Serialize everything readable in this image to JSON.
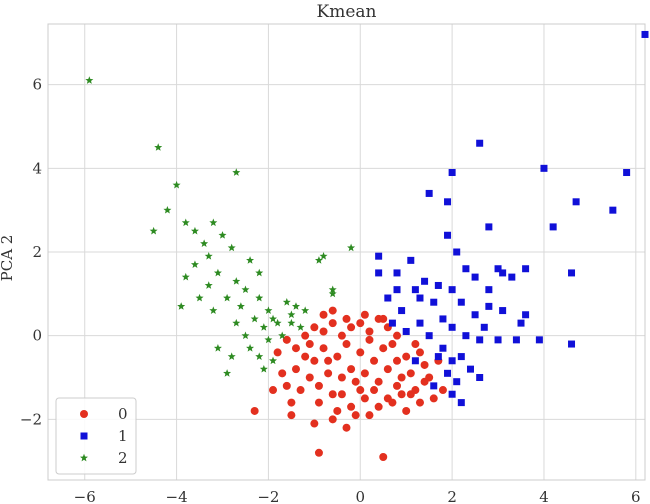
{
  "chart_data": {
    "type": "scatter",
    "title": "Kmean",
    "ylabel": "PCA 2",
    "xlabel": "",
    "xlim": [
      -6.8,
      6.2
    ],
    "ylim": [
      -3.45,
      7.45
    ],
    "xticks": [
      -6,
      -4,
      -2,
      0,
      2,
      4,
      6
    ],
    "yticks": [
      -2,
      0,
      2,
      4,
      6
    ],
    "xtick_labels": [
      "−6",
      "−4",
      "−2",
      "0",
      "2",
      "4",
      "6"
    ],
    "ytick_labels": [
      "−2",
      "0",
      "2",
      "4",
      "6"
    ],
    "grid": true,
    "legend_position": "lower-left",
    "series": [
      {
        "name": "0",
        "marker": "circle",
        "color": "#e3301f",
        "points": [
          [
            -2.3,
            -1.8
          ],
          [
            -1.5,
            -1.6
          ],
          [
            -1.0,
            -2.1
          ],
          [
            -0.9,
            -2.8
          ],
          [
            -0.6,
            -2.0
          ],
          [
            -0.3,
            -2.2
          ],
          [
            -0.2,
            -1.7
          ],
          [
            0.0,
            -1.3
          ],
          [
            0.2,
            -1.9
          ],
          [
            0.4,
            -1.7
          ],
          [
            0.5,
            -2.9
          ],
          [
            0.6,
            -1.5
          ],
          [
            0.8,
            -1.2
          ],
          [
            1.0,
            -1.8
          ],
          [
            1.1,
            -1.4
          ],
          [
            1.3,
            -1.6
          ],
          [
            1.4,
            -1.1
          ],
          [
            1.6,
            -1.5
          ],
          [
            1.8,
            -1.3
          ],
          [
            -1.9,
            -1.3
          ],
          [
            -1.7,
            -0.9
          ],
          [
            -1.6,
            -1.2
          ],
          [
            -1.4,
            -0.8
          ],
          [
            -1.3,
            -1.3
          ],
          [
            -1.2,
            -0.5
          ],
          [
            -1.1,
            -1.0
          ],
          [
            -1.0,
            -0.6
          ],
          [
            -0.9,
            -1.2
          ],
          [
            -0.8,
            -0.3
          ],
          [
            -0.7,
            -0.9
          ],
          [
            -0.6,
            -1.4
          ],
          [
            -0.5,
            -0.5
          ],
          [
            -0.4,
            -1.0
          ],
          [
            -0.3,
            -0.2
          ],
          [
            -0.2,
            -0.8
          ],
          [
            -0.1,
            -1.1
          ],
          [
            0.0,
            -0.4
          ],
          [
            0.1,
            -0.9
          ],
          [
            0.2,
            -0.1
          ],
          [
            0.3,
            -0.6
          ],
          [
            0.4,
            -1.1
          ],
          [
            0.5,
            -0.3
          ],
          [
            0.6,
            -0.8
          ],
          [
            0.7,
            -0.2
          ],
          [
            0.8,
            -0.6
          ],
          [
            0.9,
            -1.0
          ],
          [
            1.0,
            -0.5
          ],
          [
            1.1,
            -0.9
          ],
          [
            1.2,
            -0.2
          ],
          [
            1.4,
            -0.7
          ],
          [
            1.5,
            -1.0
          ],
          [
            1.7,
            -0.6
          ],
          [
            -1.8,
            -0.4
          ],
          [
            -1.6,
            -0.1
          ],
          [
            -1.4,
            -0.3
          ],
          [
            -1.2,
            0.0
          ],
          [
            -1.0,
            0.2
          ],
          [
            -0.8,
            0.1
          ],
          [
            -0.6,
            0.3
          ],
          [
            -0.4,
            0.0
          ],
          [
            -0.2,
            0.2
          ],
          [
            0.0,
            0.3
          ],
          [
            0.2,
            0.1
          ],
          [
            0.4,
            0.4
          ],
          [
            0.6,
            0.2
          ],
          [
            0.8,
            0.0
          ],
          [
            -0.8,
            0.5
          ],
          [
            -0.6,
            0.6
          ],
          [
            -0.3,
            0.4
          ],
          [
            0.1,
            0.5
          ],
          [
            0.5,
            0.4
          ],
          [
            -0.9,
            -1.6
          ],
          [
            -0.5,
            -1.8
          ],
          [
            0.1,
            -1.5
          ],
          [
            0.3,
            -1.3
          ],
          [
            0.7,
            -1.6
          ],
          [
            1.2,
            -1.3
          ],
          [
            -1.5,
            -1.9
          ],
          [
            -0.1,
            -1.9
          ],
          [
            -0.4,
            -1.4
          ],
          [
            0.9,
            -1.4
          ],
          [
            1.3,
            -0.4
          ],
          [
            -1.1,
            -0.2
          ],
          [
            -0.7,
            -0.6
          ]
        ]
      },
      {
        "name": "1",
        "marker": "square",
        "color": "#1010d8",
        "points": [
          [
            6.2,
            7.2
          ],
          [
            2.6,
            4.6
          ],
          [
            4.0,
            4.0
          ],
          [
            2.0,
            3.9
          ],
          [
            5.8,
            3.9
          ],
          [
            1.5,
            3.4
          ],
          [
            4.7,
            3.2
          ],
          [
            1.9,
            3.2
          ],
          [
            5.5,
            3.0
          ],
          [
            4.2,
            2.6
          ],
          [
            2.8,
            2.6
          ],
          [
            1.9,
            2.4
          ],
          [
            4.6,
            1.5
          ],
          [
            2.1,
            2.0
          ],
          [
            3.0,
            1.6
          ],
          [
            2.3,
            1.6
          ],
          [
            0.4,
            1.9
          ],
          [
            1.1,
            1.8
          ],
          [
            0.8,
            1.5
          ],
          [
            0.4,
            1.5
          ],
          [
            3.3,
            1.4
          ],
          [
            2.5,
            1.4
          ],
          [
            1.4,
            1.3
          ],
          [
            1.7,
            1.2
          ],
          [
            2.0,
            1.1
          ],
          [
            2.8,
            1.1
          ],
          [
            0.8,
            1.1
          ],
          [
            1.2,
            1.1
          ],
          [
            3.6,
            1.6
          ],
          [
            3.1,
            1.5
          ],
          [
            0.6,
            0.9
          ],
          [
            1.6,
            0.8
          ],
          [
            2.2,
            0.8
          ],
          [
            2.8,
            0.7
          ],
          [
            3.1,
            0.6
          ],
          [
            0.9,
            0.6
          ],
          [
            3.6,
            0.5
          ],
          [
            2.5,
            0.5
          ],
          [
            1.8,
            0.4
          ],
          [
            1.3,
            0.3
          ],
          [
            2.0,
            0.2
          ],
          [
            2.7,
            0.2
          ],
          [
            3.5,
            0.3
          ],
          [
            1.0,
            0.1
          ],
          [
            1.5,
            0.0
          ],
          [
            2.3,
            0.0
          ],
          [
            3.0,
            -0.1
          ],
          [
            3.4,
            -0.1
          ],
          [
            4.6,
            -0.2
          ],
          [
            2.6,
            -0.1
          ],
          [
            1.8,
            -0.3
          ],
          [
            2.2,
            -0.5
          ],
          [
            1.7,
            -0.5
          ],
          [
            2.0,
            -0.6
          ],
          [
            2.4,
            -0.8
          ],
          [
            1.9,
            -0.9
          ],
          [
            2.1,
            -1.1
          ],
          [
            1.6,
            -1.2
          ],
          [
            2.6,
            -1.0
          ],
          [
            2.0,
            -1.4
          ],
          [
            2.2,
            -1.6
          ],
          [
            1.2,
            -0.6
          ],
          [
            3.9,
            -0.1
          ],
          [
            0.7,
            0.3
          ],
          [
            1.3,
            0.9
          ]
        ]
      },
      {
        "name": "2",
        "marker": "star",
        "color": "#2e8b22",
        "points": [
          [
            -5.9,
            6.1
          ],
          [
            -4.4,
            4.5
          ],
          [
            -2.7,
            3.9
          ],
          [
            -4.0,
            3.6
          ],
          [
            -4.2,
            3.0
          ],
          [
            -4.5,
            2.5
          ],
          [
            -3.8,
            2.7
          ],
          [
            -3.2,
            2.7
          ],
          [
            -3.6,
            2.5
          ],
          [
            -3.0,
            2.4
          ],
          [
            -3.4,
            2.2
          ],
          [
            -2.8,
            2.1
          ],
          [
            -3.3,
            1.9
          ],
          [
            -3.6,
            1.7
          ],
          [
            -2.4,
            1.8
          ],
          [
            -3.8,
            1.4
          ],
          [
            -3.1,
            1.5
          ],
          [
            -2.7,
            1.3
          ],
          [
            -3.3,
            1.2
          ],
          [
            -2.5,
            1.1
          ],
          [
            -2.9,
            0.9
          ],
          [
            -3.5,
            0.9
          ],
          [
            -2.2,
            0.9
          ],
          [
            -2.6,
            0.7
          ],
          [
            -3.2,
            0.6
          ],
          [
            -2.0,
            0.6
          ],
          [
            -1.6,
            0.8
          ],
          [
            -1.9,
            0.4
          ],
          [
            -2.3,
            0.4
          ],
          [
            -2.7,
            0.3
          ],
          [
            -1.5,
            0.5
          ],
          [
            -1.2,
            0.6
          ],
          [
            -1.8,
            0.3
          ],
          [
            -2.1,
            0.2
          ],
          [
            -1.7,
            0.0
          ],
          [
            -1.3,
            0.2
          ],
          [
            -2.0,
            -0.1
          ],
          [
            -2.5,
            0.0
          ],
          [
            -3.1,
            -0.3
          ],
          [
            -2.4,
            -0.3
          ],
          [
            -2.8,
            -0.5
          ],
          [
            -2.2,
            -0.5
          ],
          [
            -1.9,
            -0.6
          ],
          [
            -2.1,
            -0.8
          ],
          [
            -2.9,
            -0.9
          ],
          [
            -3.9,
            0.7
          ],
          [
            -0.6,
            1.0
          ],
          [
            -0.8,
            1.9
          ],
          [
            -0.2,
            2.1
          ],
          [
            -0.9,
            1.8
          ],
          [
            -0.6,
            1.1
          ],
          [
            -1.5,
            0.3
          ],
          [
            -2.2,
            1.5
          ],
          [
            -1.4,
            0.7
          ]
        ]
      }
    ]
  }
}
